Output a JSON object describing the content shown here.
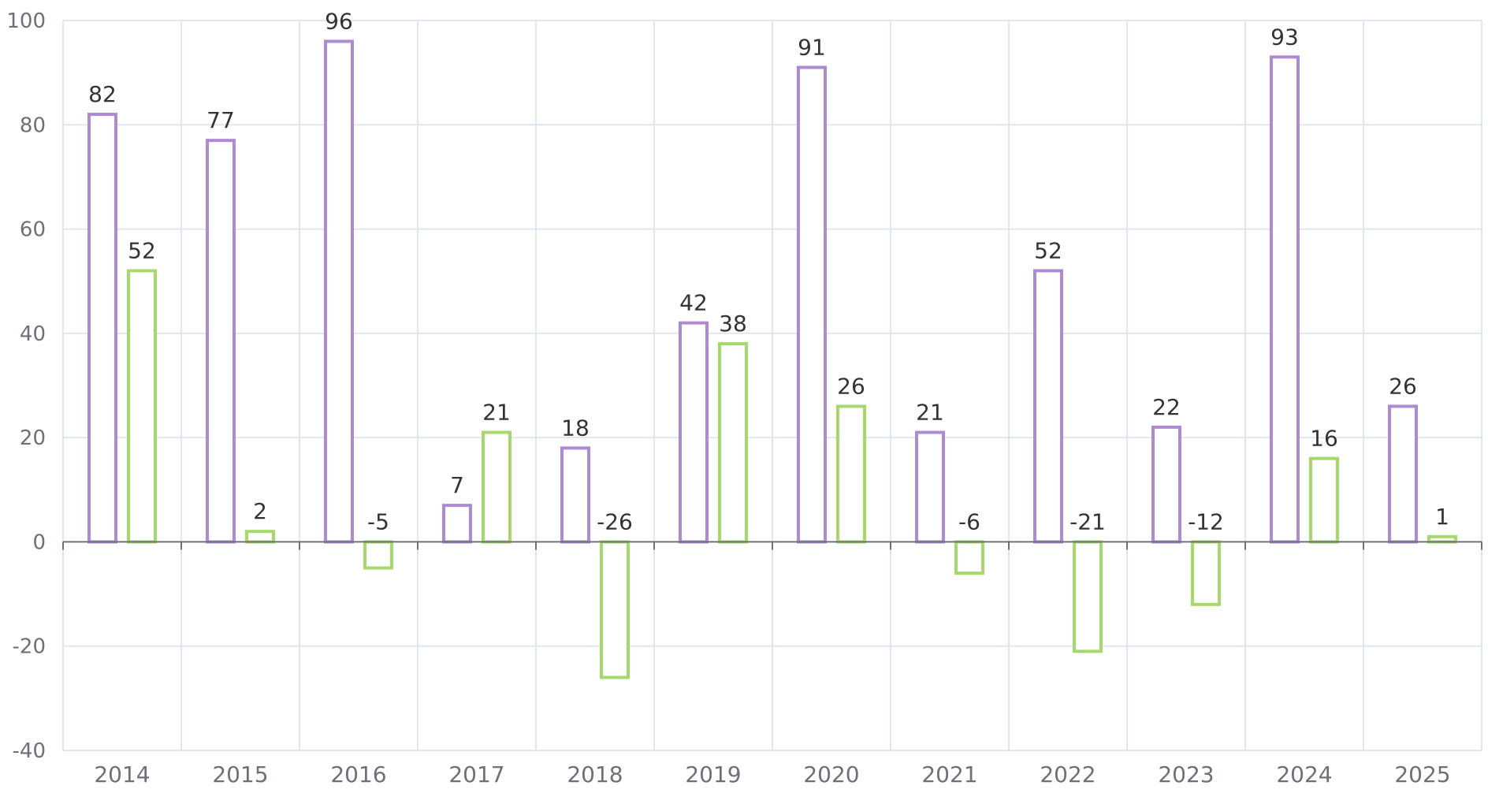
{
  "chart_data": {
    "type": "bar",
    "categories": [
      "2014",
      "2015",
      "2016",
      "2017",
      "2018",
      "2019",
      "2020",
      "2021",
      "2022",
      "2023",
      "2024",
      "2025"
    ],
    "series": [
      {
        "values": [
          82,
          77,
          96,
          7,
          18,
          42,
          91,
          21,
          52,
          22,
          93,
          26
        ],
        "color": "#ae8ad2"
      },
      {
        "values": [
          52,
          2,
          -5,
          21,
          -26,
          38,
          26,
          -6,
          -21,
          -12,
          16,
          1
        ],
        "color": "#a6d86b"
      }
    ],
    "ylim": [
      -40,
      100
    ],
    "yticks": [
      -40,
      -20,
      0,
      20,
      40,
      60,
      80,
      100
    ],
    "grid": true,
    "title": "",
    "xlabel": "",
    "ylabel": "",
    "colors": {
      "grid": "#e0e6f1",
      "axis": "#6e7079",
      "label_text": "#333333",
      "tick_text": "#6e7079"
    }
  }
}
